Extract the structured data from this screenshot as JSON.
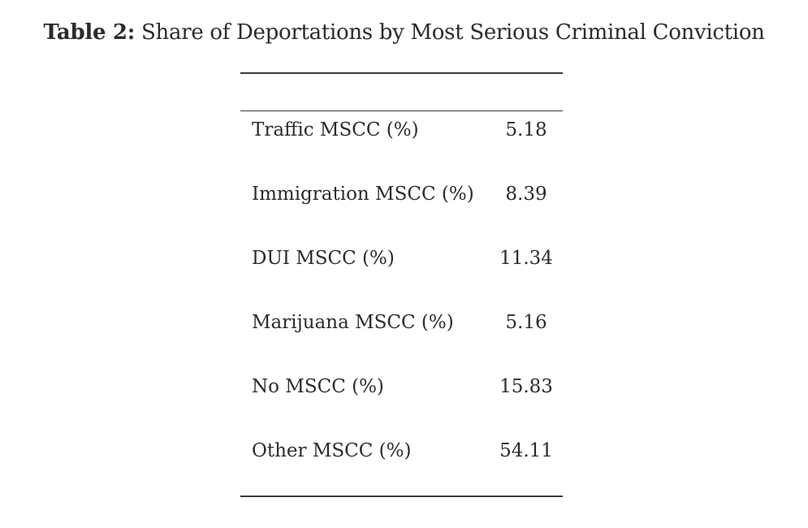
{
  "table": {
    "label": "Table 2:",
    "title": "Share of Deportations by Most Serious Criminal Conviction",
    "rows": [
      {
        "name": "Traffic MSCC (%)",
        "value": "5.18"
      },
      {
        "name": "Immigration MSCC (%)",
        "value": "8.39"
      },
      {
        "name": "DUI MSCC (%)",
        "value": "11.34"
      },
      {
        "name": "Marijuana MSCC (%)",
        "value": "5.16"
      },
      {
        "name": "No MSCC (%)",
        "value": "15.83"
      },
      {
        "name": "Other MSCC (%)",
        "value": "54.11"
      }
    ]
  }
}
